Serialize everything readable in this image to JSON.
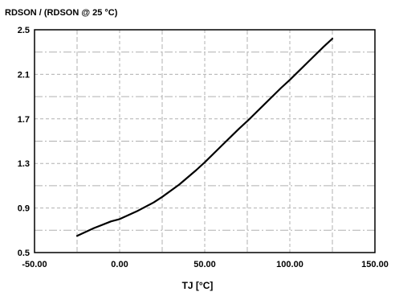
{
  "chart_data": {
    "type": "line",
    "ylabel": "RDSON / (RDSON @ 25 °C)",
    "xlabel": "TJ [°C]",
    "xlim": [
      -50,
      150
    ],
    "ylim": [
      0.5,
      2.5
    ],
    "x_ticks": [
      "-50.00",
      "0.00",
      "50.00",
      "100.00",
      "150.00"
    ],
    "y_ticks": [
      "0.5",
      "0.9",
      "1.3",
      "1.7",
      "2.1",
      "2.5"
    ],
    "grid": true,
    "series": [
      {
        "color": "#000000",
        "x": [
          -25,
          -15,
          -5,
          0,
          10,
          20,
          25,
          35,
          45,
          50,
          60,
          70,
          75,
          85,
          95,
          100,
          110,
          120,
          125
        ],
        "y": [
          0.65,
          0.72,
          0.78,
          0.8,
          0.87,
          0.95,
          1.0,
          1.11,
          1.24,
          1.31,
          1.46,
          1.61,
          1.68,
          1.83,
          1.98,
          2.05,
          2.2,
          2.35,
          2.42
        ]
      }
    ]
  }
}
